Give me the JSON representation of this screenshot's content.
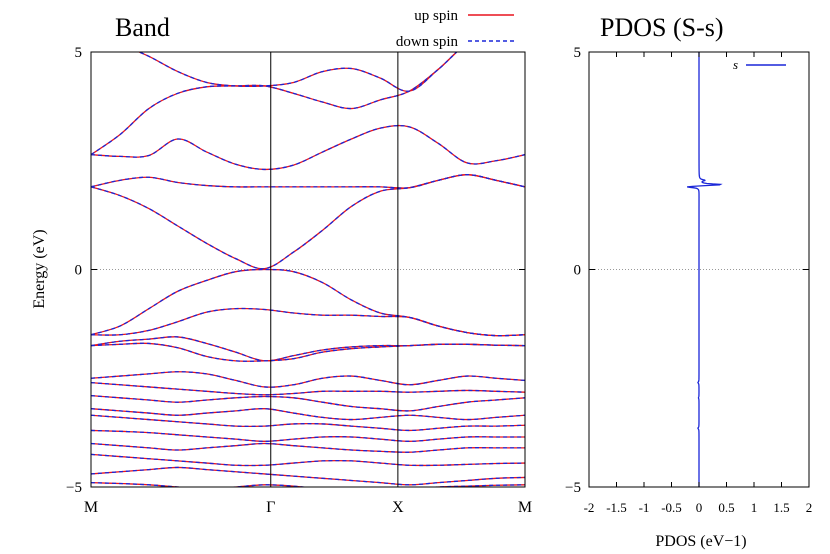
{
  "chart_data": [
    {
      "type": "line",
      "title": "Band",
      "ylabel": "Energy (eV)",
      "xlabel": "",
      "ylim": [
        -5,
        5
      ],
      "yticks": [
        -5,
        0,
        5
      ],
      "kpoints": [
        {
          "label": "M",
          "x": 0
        },
        {
          "label": "Γ",
          "x": 1.414
        },
        {
          "label": "X",
          "x": 2.414
        },
        {
          "label": "M",
          "x": 3.414
        }
      ],
      "fermi_level": 0,
      "legend": {
        "position": "top",
        "entries": [
          {
            "label": "up spin",
            "color": "#e8141e",
            "style": "solid"
          },
          {
            "label": "down spin",
            "color": "#1a26d8",
            "style": "dashed"
          }
        ]
      },
      "series": [
        {
          "values": [
            2.64,
            2.6,
            2.62,
            3.0,
            2.7,
            2.42,
            2.3,
            2.4,
            2.7,
            3.0,
            3.25,
            3.28,
            2.9,
            2.45,
            2.5,
            2.64
          ]
        },
        {
          "values": [
            1.9,
            2.05,
            2.12,
            2.0,
            1.93,
            1.9,
            1.9,
            1.9,
            1.9,
            1.9,
            1.9,
            1.88,
            2.05,
            2.18,
            2.05,
            1.9
          ]
        },
        {
          "values": [
            1.9,
            1.7,
            1.4,
            1.0,
            0.6,
            0.25,
            0.02,
            0.4,
            0.9,
            1.45,
            1.8,
            1.88,
            2.05,
            2.18,
            2.05,
            1.9
          ]
        },
        {
          "values": [
            2.64,
            3.1,
            3.7,
            4.05,
            4.2,
            4.22,
            4.22,
            4.05,
            3.85,
            3.7,
            3.9,
            4.1,
            4.6,
            5.2,
            5.5,
            5.6
          ]
        },
        {
          "values": [
            5.6,
            5.2,
            4.9,
            4.55,
            4.3,
            4.22,
            4.22,
            4.3,
            4.55,
            4.62,
            4.4,
            4.1,
            4.6,
            5.2,
            5.5,
            5.6
          ]
        },
        {
          "values": [
            -1.5,
            -1.3,
            -0.9,
            -0.5,
            -0.25,
            -0.05,
            0.0,
            -0.05,
            -0.3,
            -0.7,
            -1.0,
            -1.1,
            -1.3,
            -1.45,
            -1.52,
            -1.5
          ]
        },
        {
          "values": [
            -1.5,
            -1.5,
            -1.4,
            -1.2,
            -0.98,
            -0.9,
            -0.92,
            -1.0,
            -1.05,
            -1.05,
            -1.08,
            -1.1,
            -1.3,
            -1.45,
            -1.52,
            -1.5
          ]
        },
        {
          "values": [
            -1.75,
            -1.65,
            -1.6,
            -1.55,
            -1.7,
            -1.9,
            -2.1,
            -1.98,
            -1.85,
            -1.78,
            -1.75,
            -1.75,
            -1.72,
            -1.72,
            -1.74,
            -1.75
          ]
        },
        {
          "values": [
            -1.75,
            -1.72,
            -1.7,
            -1.8,
            -2.0,
            -2.1,
            -2.1,
            -2.05,
            -1.9,
            -1.82,
            -1.78,
            -1.75,
            -1.72,
            -1.72,
            -1.74,
            -1.75
          ]
        },
        {
          "values": [
            -2.5,
            -2.45,
            -2.4,
            -2.35,
            -2.4,
            -2.55,
            -2.7,
            -2.65,
            -2.5,
            -2.45,
            -2.55,
            -2.65,
            -2.55,
            -2.45,
            -2.5,
            -2.55
          ]
        },
        {
          "values": [
            -2.6,
            -2.65,
            -2.7,
            -2.75,
            -2.8,
            -2.85,
            -2.88,
            -2.85,
            -2.8,
            -2.8,
            -2.8,
            -2.82,
            -2.8,
            -2.78,
            -2.8,
            -2.82
          ]
        },
        {
          "values": [
            -2.9,
            -2.95,
            -3.0,
            -3.05,
            -3.0,
            -2.95,
            -2.92,
            -2.95,
            -3.05,
            -3.15,
            -3.2,
            -3.25,
            -3.15,
            -3.05,
            -3.0,
            -2.95
          ]
        },
        {
          "values": [
            -3.2,
            -3.25,
            -3.3,
            -3.35,
            -3.3,
            -3.25,
            -3.2,
            -3.3,
            -3.4,
            -3.45,
            -3.4,
            -3.35,
            -3.4,
            -3.45,
            -3.4,
            -3.35
          ]
        },
        {
          "values": [
            -3.35,
            -3.4,
            -3.45,
            -3.5,
            -3.55,
            -3.6,
            -3.6,
            -3.55,
            -3.55,
            -3.6,
            -3.65,
            -3.7,
            -3.65,
            -3.6,
            -3.6,
            -3.58
          ]
        },
        {
          "values": [
            -3.7,
            -3.72,
            -3.75,
            -3.8,
            -3.85,
            -3.9,
            -3.95,
            -3.9,
            -3.85,
            -3.85,
            -3.9,
            -3.95,
            -3.9,
            -3.85,
            -3.85,
            -3.85
          ]
        },
        {
          "values": [
            -4.0,
            -4.05,
            -4.1,
            -4.15,
            -4.1,
            -4.05,
            -4.0,
            -4.05,
            -4.1,
            -4.15,
            -4.18,
            -4.2,
            -4.15,
            -4.1,
            -4.1,
            -4.1
          ]
        },
        {
          "values": [
            -4.25,
            -4.3,
            -4.35,
            -4.4,
            -4.45,
            -4.5,
            -4.5,
            -4.45,
            -4.4,
            -4.4,
            -4.45,
            -4.5,
            -4.5,
            -4.48,
            -4.46,
            -4.45
          ]
        },
        {
          "values": [
            -4.7,
            -4.65,
            -4.6,
            -4.55,
            -4.6,
            -4.65,
            -4.7,
            -4.75,
            -4.8,
            -4.85,
            -4.9,
            -4.95,
            -4.9,
            -4.85,
            -4.8,
            -4.78
          ]
        },
        {
          "values": [
            -4.9,
            -4.92,
            -4.95,
            -5.0,
            -5.05,
            -5.0,
            -4.95,
            -4.98,
            -5.05,
            -5.1,
            -5.1,
            -5.05,
            -5.0,
            -4.98,
            -4.96,
            -4.95
          ]
        }
      ]
    },
    {
      "type": "line",
      "title": "PDOS (S-s)",
      "xlabel": "PDOS (eV−1)",
      "ylabel": "",
      "xlim": [
        -2,
        2
      ],
      "ylim": [
        -5,
        5
      ],
      "xticks": [
        -2,
        -1.5,
        -1,
        -0.5,
        0,
        0.5,
        1,
        1.5,
        2
      ],
      "yticks": [
        -5,
        0,
        5
      ],
      "fermi_level": 0,
      "legend": {
        "position": "top-right",
        "entries": [
          {
            "label": "s",
            "color": "#1a26d8"
          }
        ]
      },
      "series": [
        {
          "name": "s",
          "peaks": [
            {
              "e": 1.9,
              "v": -0.28
            },
            {
              "e": 1.95,
              "v": 0.45
            },
            {
              "e": 2.05,
              "v": 0.1
            },
            {
              "e": -2.6,
              "v": -0.08
            },
            {
              "e": -2.6,
              "v": 0.06
            },
            {
              "e": -2.95,
              "v": -0.06
            },
            {
              "e": -2.95,
              "v": 0.05
            },
            {
              "e": -3.65,
              "v": -0.1
            },
            {
              "e": -3.65,
              "v": 0.08
            },
            {
              "e": -3.4,
              "v": -0.03
            },
            {
              "e": -3.4,
              "v": 0.03
            },
            {
              "e": -4.1,
              "v": -0.03
            },
            {
              "e": -4.1,
              "v": 0.03
            }
          ]
        }
      ]
    }
  ]
}
